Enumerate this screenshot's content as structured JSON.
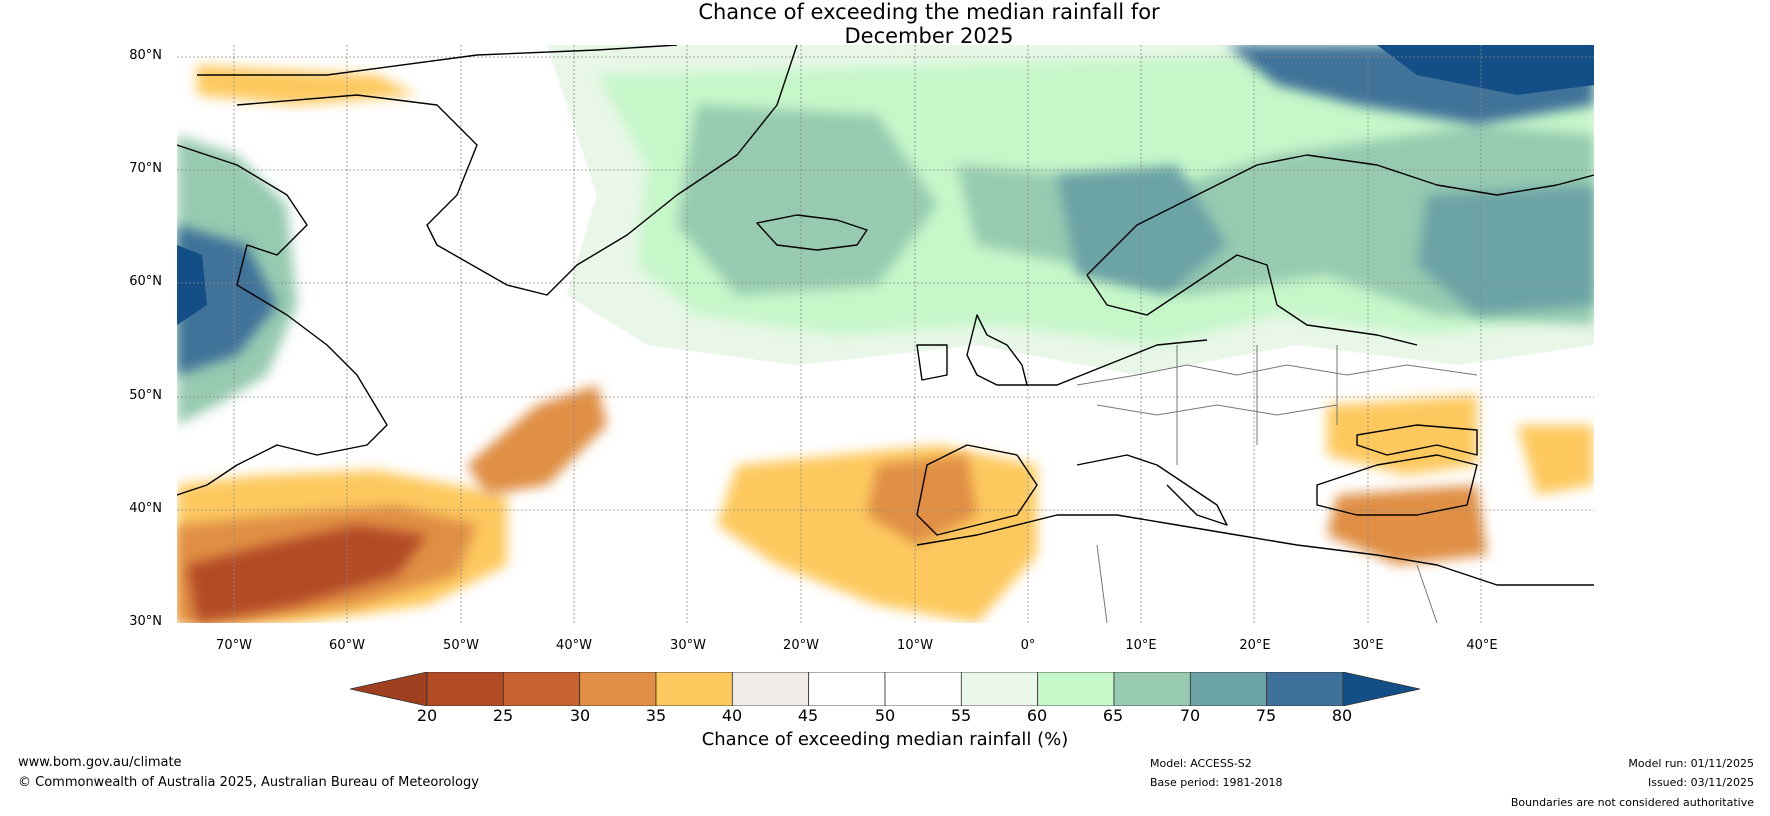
{
  "title": {
    "line1": "Chance of exceeding the median rainfall for",
    "line2": "December 2025"
  },
  "map": {
    "latitude_labels": [
      "80°N",
      "70°N",
      "60°N",
      "50°N",
      "40°N",
      "30°N"
    ],
    "longitude_labels": [
      "70°W",
      "60°W",
      "50°W",
      "40°W",
      "30°W",
      "20°W",
      "10°W",
      "0°",
      "10°E",
      "20°E",
      "30°E",
      "40°E"
    ],
    "extent": {
      "lon_min": -75,
      "lon_max": 50,
      "lat_min": 30,
      "lat_max": 80
    },
    "region_values_percent": {
      "arctic_north_east": 80,
      "scandinavia_north_sea": 75,
      "labrador_sea": 75,
      "north_atlantic_60N": 65,
      "central_europe": 50,
      "iberia_north_africa": 35,
      "western_atlantic_35N": 25,
      "turkey": 35
    }
  },
  "colorbar": {
    "ticks": [
      "20",
      "25",
      "30",
      "35",
      "40",
      "45",
      "50",
      "55",
      "60",
      "65",
      "70",
      "75",
      "80"
    ],
    "colors": [
      "#9f3f1f",
      "#b34b25",
      "#c9622f",
      "#e08f45",
      "#fdc95f",
      "#efebe6",
      "#ffffff",
      "#ffffff",
      "#e8f7e8",
      "#c6f7c9",
      "#97cab1",
      "#6ca3a6",
      "#3f729a",
      "#134f86"
    ],
    "label": "Chance of exceeding median rainfall (%)"
  },
  "footer": {
    "website": "www.bom.gov.au/climate",
    "copyright": "© Commonwealth of Australia 2025, Australian Bureau of Meteorology",
    "model": "Model: ACCESS-S2",
    "base_period": "Base period: 1981-2018",
    "model_run": "Model run: 01/11/2025",
    "issued": "Issued: 03/11/2025",
    "disclaimer": "Boundaries are not considered authoritative"
  }
}
